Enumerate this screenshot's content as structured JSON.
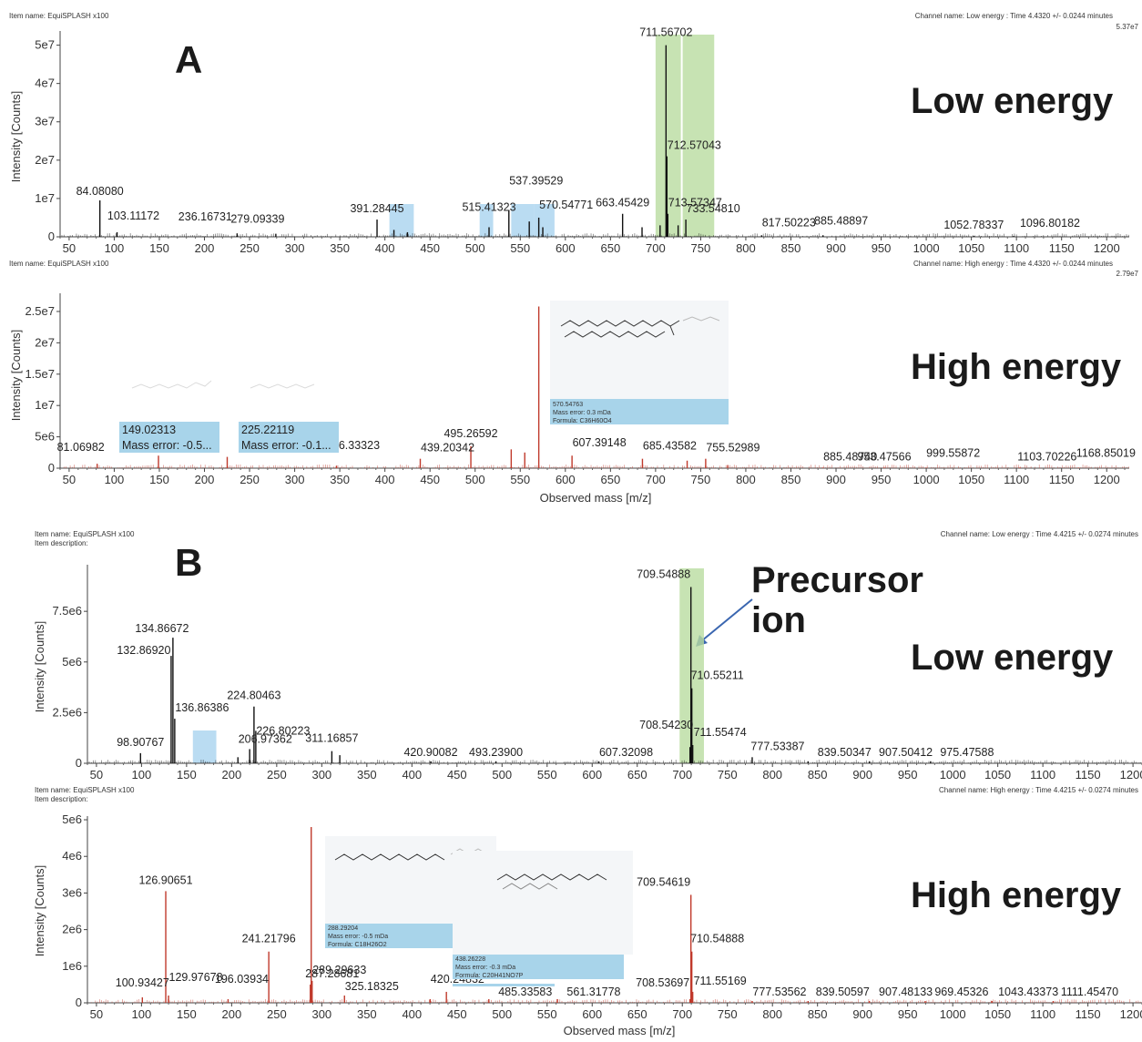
{
  "panels": {
    "A": {
      "letter": "A",
      "low": {
        "item_name": "Item name: EquiSPLASH x100",
        "item_desc": "",
        "channel": "Channel name: Low energy : Time 4.4320 +/- 0.0244 minutes",
        "max_label": "5.37e7",
        "energy_label": "Low energy",
        "ylabel": "Intensity [Counts]",
        "xlabel": ""
      },
      "high": {
        "item_name": "Item name: EquiSPLASH x100",
        "item_desc": "",
        "channel": "Channel name: High energy : Time 4.4320 +/- 0.0244 minutes",
        "max_label": "2.79e7",
        "energy_label": "High energy",
        "ylabel": "Intensity [Counts]",
        "xlabel": "Observed mass [m/z]",
        "boxes": [
          {
            "lines": [
              "149.02313",
              "Mass error: -0.5..."
            ]
          },
          {
            "lines": [
              "225.22119",
              "Mass error: -0.1..."
            ]
          },
          {
            "lines": [
              "570.54763",
              "Mass error: 0.3 mDa",
              "Formula: C36H60O4"
            ]
          }
        ]
      }
    },
    "B": {
      "letter": "B",
      "precursor_label": [
        "Precursor",
        "ion"
      ],
      "low": {
        "item_name": "Item name: EquiSPLASH x100",
        "item_desc": "Item description:",
        "channel": "Channel name: Low energy : Time 4.4215 +/- 0.0274 minutes",
        "max_label": "",
        "energy_label": "Low energy",
        "ylabel": "Intensity [Counts]",
        "xlabel": ""
      },
      "high": {
        "item_name": "Item name: EquiSPLASH x100",
        "item_desc": "Item description:",
        "channel": "Channel name: High energy : Time 4.4215 +/- 0.0274 minutes",
        "max_label": "",
        "energy_label": "High energy",
        "ylabel": "Intensity [Counts]",
        "xlabel": "Observed mass [m/z]",
        "boxes": [
          {
            "lines": [
              "288.29204",
              "Mass error: -0.5 mDa",
              "Formula: C18H26O2"
            ]
          },
          {
            "lines": [
              "438.26228",
              "Mass error: -0.3 mDa",
              "Formula: C20H41NO7P"
            ]
          }
        ]
      }
    }
  },
  "colors": {
    "low_peak": "#111111",
    "high_peak": "#c0392b",
    "green_highlight": "#b9dca0",
    "blue_highlight": "#a9d3ef",
    "annotation_box": "#a8d4ea",
    "arrow": "#3a66b0"
  },
  "chart_data": [
    {
      "id": "A-low",
      "type": "bar",
      "xlabel": "",
      "ylabel": "Intensity [Counts]",
      "xlim": [
        40,
        1225
      ],
      "ylim": [
        0,
        53700000.0
      ],
      "xticks": [
        50,
        100,
        150,
        200,
        250,
        300,
        350,
        400,
        450,
        500,
        550,
        600,
        650,
        700,
        750,
        800,
        850,
        900,
        950,
        1000,
        1050,
        1100,
        1150,
        1200
      ],
      "yticks": [
        {
          "v": 0,
          "t": "0"
        },
        {
          "v": 10000000.0,
          "t": "1e7"
        },
        {
          "v": 20000000.0,
          "t": "2e7"
        },
        {
          "v": 30000000.0,
          "t": "3e7"
        },
        {
          "v": 40000000.0,
          "t": "4e7"
        },
        {
          "v": 50000000.0,
          "t": "5e7"
        }
      ],
      "peaks": [
        {
          "mz": 84.0808,
          "y": 9500000.0
        },
        {
          "mz": 103.11172,
          "y": 1200000.0
        },
        {
          "mz": 236.16731,
          "y": 900000.0
        },
        {
          "mz": 279.09339,
          "y": 800000.0
        },
        {
          "mz": 391.28445,
          "y": 4500000.0
        },
        {
          "mz": 410,
          "y": 1800000.0
        },
        {
          "mz": 425,
          "y": 1200000.0
        },
        {
          "mz": 515.41323,
          "y": 2500000.0
        },
        {
          "mz": 537.39529,
          "y": 7000000.0
        },
        {
          "mz": 560,
          "y": 4000000.0
        },
        {
          "mz": 570.54771,
          "y": 5000000.0
        },
        {
          "mz": 575,
          "y": 2500000.0
        },
        {
          "mz": 663.45429,
          "y": 6000000.0
        },
        {
          "mz": 685,
          "y": 2500000.0
        },
        {
          "mz": 705,
          "y": 3000000.0
        },
        {
          "mz": 711.56702,
          "y": 50000000.0
        },
        {
          "mz": 712.57043,
          "y": 21000000.0
        },
        {
          "mz": 713.57347,
          "y": 6000000.0
        },
        {
          "mz": 725,
          "y": 3000000.0
        },
        {
          "mz": 733.5481,
          "y": 4500000.0
        },
        {
          "mz": 817.50223,
          "y": 400000.0
        },
        {
          "mz": 885.48897,
          "y": 400000.0
        },
        {
          "mz": 1052.78337,
          "y": 200000.0
        },
        {
          "mz": 1096.80182,
          "y": 200000.0
        }
      ],
      "labels": [
        {
          "mz": 84.0808,
          "text": "84.08080"
        },
        {
          "mz": 103.11172,
          "text": "103.11172"
        },
        {
          "mz": 236.16731,
          "text": "236.16731"
        },
        {
          "mz": 279.09339,
          "text": "279.09339"
        },
        {
          "mz": 391.28445,
          "text": "391.28445"
        },
        {
          "mz": 515.41323,
          "text": "515.41323"
        },
        {
          "mz": 537.39529,
          "text": "537.39529"
        },
        {
          "mz": 570.54771,
          "text": "570.54771"
        },
        {
          "mz": 663.45429,
          "text": "663.45429"
        },
        {
          "mz": 711.56702,
          "text": "711.56702"
        },
        {
          "mz": 712.57043,
          "text": "712.57043"
        },
        {
          "mz": 713.57347,
          "text": "713.57347"
        },
        {
          "mz": 733.5481,
          "text": "733.54810"
        },
        {
          "mz": 817.50223,
          "text": "817.50223"
        },
        {
          "mz": 885.48897,
          "text": "885.48897"
        },
        {
          "mz": 1052.78337,
          "text": "1052.78337"
        },
        {
          "mz": 1096.80182,
          "text": "1096.80182"
        }
      ],
      "highlights": [
        {
          "from": 700,
          "to": 728,
          "color": "green"
        },
        {
          "from": 730,
          "to": 765,
          "color": "green"
        },
        {
          "from": 405,
          "to": 432,
          "color": "blue"
        },
        {
          "from": 505,
          "to": 520,
          "color": "blue"
        },
        {
          "from": 540,
          "to": 565,
          "color": "blue"
        },
        {
          "from": 565,
          "to": 588,
          "color": "blue"
        }
      ]
    },
    {
      "id": "A-high",
      "type": "bar",
      "xlabel": "Observed mass [m/z]",
      "ylabel": "Intensity [Counts]",
      "xlim": [
        40,
        1225
      ],
      "ylim": [
        0,
        27900000.0
      ],
      "xticks": [
        50,
        100,
        150,
        200,
        250,
        300,
        350,
        400,
        450,
        500,
        550,
        600,
        650,
        700,
        750,
        800,
        850,
        900,
        950,
        1000,
        1050,
        1100,
        1150,
        1200
      ],
      "yticks": [
        {
          "v": 0,
          "t": "0"
        },
        {
          "v": 5000000.0,
          "t": "5e6"
        },
        {
          "v": 10000000.0,
          "t": "1e7"
        },
        {
          "v": 15000000.0,
          "t": "1.5e7"
        },
        {
          "v": 20000000.0,
          "t": "2e7"
        },
        {
          "v": 25000000.0,
          "t": "2.5e7"
        }
      ],
      "peaks": [
        {
          "mz": 81.06982,
          "y": 700000.0
        },
        {
          "mz": 149.02313,
          "y": 2000000.0
        },
        {
          "mz": 225.22119,
          "y": 1800000.0
        },
        {
          "mz": 346.33323,
          "y": 400000.0
        },
        {
          "mz": 439.20342,
          "y": 1500000.0
        },
        {
          "mz": 495.26592,
          "y": 3500000.0
        },
        {
          "mz": 540,
          "y": 3000000.0
        },
        {
          "mz": 555,
          "y": 2500000.0
        },
        {
          "mz": 570.54763,
          "y": 25800000.0
        },
        {
          "mz": 607.39148,
          "y": 2000000.0
        },
        {
          "mz": 685.43582,
          "y": 1500000.0
        },
        {
          "mz": 735,
          "y": 1200000.0
        },
        {
          "mz": 755.52989,
          "y": 1500000.0
        },
        {
          "mz": 780,
          "y": 500000.0
        },
        {
          "mz": 885.4874,
          "y": 100000.0
        },
        {
          "mz": 953.47566,
          "y": 100000.0
        },
        {
          "mz": 999.55872,
          "y": 100000.0
        },
        {
          "mz": 1103.70226,
          "y": 100000.0
        },
        {
          "mz": 1168.85019,
          "y": 100000.0
        }
      ],
      "labels": [
        {
          "mz": 81.06982,
          "text": "81.06982"
        },
        {
          "mz": 346.33323,
          "text": "346.33323"
        },
        {
          "mz": 439.20342,
          "text": "439.20342"
        },
        {
          "mz": 495.26592,
          "text": "495.26592"
        },
        {
          "mz": 607.39148,
          "text": "607.39148"
        },
        {
          "mz": 685.43582,
          "text": "685.43582"
        },
        {
          "mz": 755.52989,
          "text": "755.52989"
        },
        {
          "mz": 885.4874,
          "text": "885.48740"
        },
        {
          "mz": 953.47566,
          "text": "953.47566"
        },
        {
          "mz": 999.55872,
          "text": "999.55872"
        },
        {
          "mz": 1103.70226,
          "text": "1103.70226"
        },
        {
          "mz": 1168.85019,
          "text": "1168.85019"
        }
      ]
    },
    {
      "id": "B-low",
      "type": "bar",
      "xlabel": "",
      "ylabel": "Intensity [Counts]",
      "xlim": [
        40,
        1210
      ],
      "ylim": [
        0,
        9800000.0
      ],
      "xticks": [
        50,
        100,
        150,
        200,
        250,
        300,
        350,
        400,
        450,
        500,
        550,
        600,
        650,
        700,
        750,
        800,
        850,
        900,
        950,
        1000,
        1050,
        1100,
        1150,
        1200
      ],
      "yticks": [
        {
          "v": 0,
          "t": "0"
        },
        {
          "v": 2500000.0,
          "t": "2.5e6"
        },
        {
          "v": 5000000.0,
          "t": "5e6"
        },
        {
          "v": 7500000.0,
          "t": "7.5e6"
        }
      ],
      "peaks": [
        {
          "mz": 98.90767,
          "y": 500000.0
        },
        {
          "mz": 132.8692,
          "y": 5300000.0
        },
        {
          "mz": 134.86672,
          "y": 6200000.0
        },
        {
          "mz": 136.86386,
          "y": 2200000.0
        },
        {
          "mz": 206.97362,
          "y": 300000.0
        },
        {
          "mz": 220,
          "y": 700000.0
        },
        {
          "mz": 224.80463,
          "y": 2800000.0
        },
        {
          "mz": 226.80223,
          "y": 1600000.0
        },
        {
          "mz": 311.16857,
          "y": 600000.0
        },
        {
          "mz": 320,
          "y": 400000.0
        },
        {
          "mz": 420.90082,
          "y": 100000.0
        },
        {
          "mz": 493.239,
          "y": 100000.0
        },
        {
          "mz": 607.32098,
          "y": 100000.0
        },
        {
          "mz": 708.5423,
          "y": 800000.0
        },
        {
          "mz": 709.54888,
          "y": 8700000.0
        },
        {
          "mz": 710.55211,
          "y": 3700000.0
        },
        {
          "mz": 711.55474,
          "y": 900000.0
        },
        {
          "mz": 777.53387,
          "y": 300000.0
        },
        {
          "mz": 839.50347,
          "y": 100000.0
        },
        {
          "mz": 907.50412,
          "y": 100000.0
        },
        {
          "mz": 975.47588,
          "y": 100000.0
        }
      ],
      "labels": [
        {
          "mz": 98.90767,
          "text": "98.90767"
        },
        {
          "mz": 132.8692,
          "text": "132.86920"
        },
        {
          "mz": 134.86672,
          "text": "134.86672"
        },
        {
          "mz": 136.86386,
          "text": "136.86386"
        },
        {
          "mz": 206.97362,
          "text": "206.97362"
        },
        {
          "mz": 224.80463,
          "text": "224.80463"
        },
        {
          "mz": 226.80223,
          "text": "226.80223"
        },
        {
          "mz": 311.16857,
          "text": "311.16857"
        },
        {
          "mz": 420.90082,
          "text": "420.90082"
        },
        {
          "mz": 493.239,
          "text": "493.23900"
        },
        {
          "mz": 607.32098,
          "text": "607.32098"
        },
        {
          "mz": 708.5423,
          "text": "708.54230"
        },
        {
          "mz": 709.54888,
          "text": "709.54888"
        },
        {
          "mz": 710.55211,
          "text": "710.55211"
        },
        {
          "mz": 711.55474,
          "text": "711.55474"
        },
        {
          "mz": 777.53387,
          "text": "777.53387"
        },
        {
          "mz": 839.50347,
          "text": "839.50347"
        },
        {
          "mz": 907.50412,
          "text": "907.50412"
        },
        {
          "mz": 975.47588,
          "text": "975.47588"
        }
      ],
      "highlights": [
        {
          "from": 697,
          "to": 724,
          "color": "green"
        },
        {
          "from": 157,
          "to": 183,
          "color": "blue"
        }
      ]
    },
    {
      "id": "B-high",
      "type": "bar",
      "xlabel": "Observed mass [m/z]",
      "ylabel": "Intensity [Counts]",
      "xlim": [
        40,
        1210
      ],
      "ylim": [
        0,
        5100000.0
      ],
      "xticks": [
        50,
        100,
        150,
        200,
        250,
        300,
        350,
        400,
        450,
        500,
        550,
        600,
        650,
        700,
        750,
        800,
        850,
        900,
        950,
        1000,
        1050,
        1100,
        1150,
        1200
      ],
      "yticks": [
        {
          "v": 0,
          "t": "0"
        },
        {
          "v": 1000000.0,
          "t": "1e6"
        },
        {
          "v": 2000000.0,
          "t": "2e6"
        },
        {
          "v": 3000000.0,
          "t": "3e6"
        },
        {
          "v": 4000000.0,
          "t": "4e6"
        },
        {
          "v": 5000000.0,
          "t": "5e6"
        }
      ],
      "peaks": [
        {
          "mz": 100.93427,
          "y": 150000.0
        },
        {
          "mz": 126.90651,
          "y": 3050000.0
        },
        {
          "mz": 129.97678,
          "y": 200000.0
        },
        {
          "mz": 196.03934,
          "y": 100000.0
        },
        {
          "mz": 241.21796,
          "y": 1400000.0
        },
        {
          "mz": 287.28681,
          "y": 500000.0
        },
        {
          "mz": 288.29204,
          "y": 4800000.0
        },
        {
          "mz": 289.29633,
          "y": 600000.0
        },
        {
          "mz": 325.18325,
          "y": 200000.0
        },
        {
          "mz": 420.24832,
          "y": 100000.0
        },
        {
          "mz": 438.26228,
          "y": 300000.0
        },
        {
          "mz": 485.33583,
          "y": 100000.0
        },
        {
          "mz": 561.31778,
          "y": 100000.0
        },
        {
          "mz": 708.53697,
          "y": 100000.0
        },
        {
          "mz": 709.54619,
          "y": 2950000.0
        },
        {
          "mz": 710.54888,
          "y": 1400000.0
        },
        {
          "mz": 711.55169,
          "y": 300000.0
        },
        {
          "mz": 777.53562,
          "y": 50000.0
        },
        {
          "mz": 839.50597,
          "y": 50000.0
        },
        {
          "mz": 907.48133,
          "y": 50000.0
        },
        {
          "mz": 969.45326,
          "y": 50000.0
        },
        {
          "mz": 1043.43373,
          "y": 50000.0
        },
        {
          "mz": 1111.4547,
          "y": 50000.0
        }
      ],
      "labels": [
        {
          "mz": 100.93427,
          "text": "100.93427"
        },
        {
          "mz": 126.90651,
          "text": "126.90651"
        },
        {
          "mz": 129.97678,
          "text": "129.97678"
        },
        {
          "mz": 196.03934,
          "text": "196.03934"
        },
        {
          "mz": 241.21796,
          "text": "241.21796"
        },
        {
          "mz": 287.28681,
          "text": "287.28681"
        },
        {
          "mz": 289.29633,
          "text": "289.29633"
        },
        {
          "mz": 325.18325,
          "text": "325.18325"
        },
        {
          "mz": 420.24832,
          "text": "420.24832"
        },
        {
          "mz": 485.33583,
          "text": "485.33583"
        },
        {
          "mz": 561.31778,
          "text": "561.31778"
        },
        {
          "mz": 708.53697,
          "text": "708.53697"
        },
        {
          "mz": 709.54619,
          "text": "709.54619"
        },
        {
          "mz": 710.54888,
          "text": "710.54888"
        },
        {
          "mz": 711.55169,
          "text": "711.55169"
        },
        {
          "mz": 777.53562,
          "text": "777.53562"
        },
        {
          "mz": 839.50597,
          "text": "839.50597"
        },
        {
          "mz": 907.48133,
          "text": "907.48133"
        },
        {
          "mz": 969.45326,
          "text": "969.45326"
        },
        {
          "mz": 1043.43373,
          "text": "1043.43373"
        },
        {
          "mz": 1111.4547,
          "text": "1111.45470"
        }
      ]
    }
  ]
}
